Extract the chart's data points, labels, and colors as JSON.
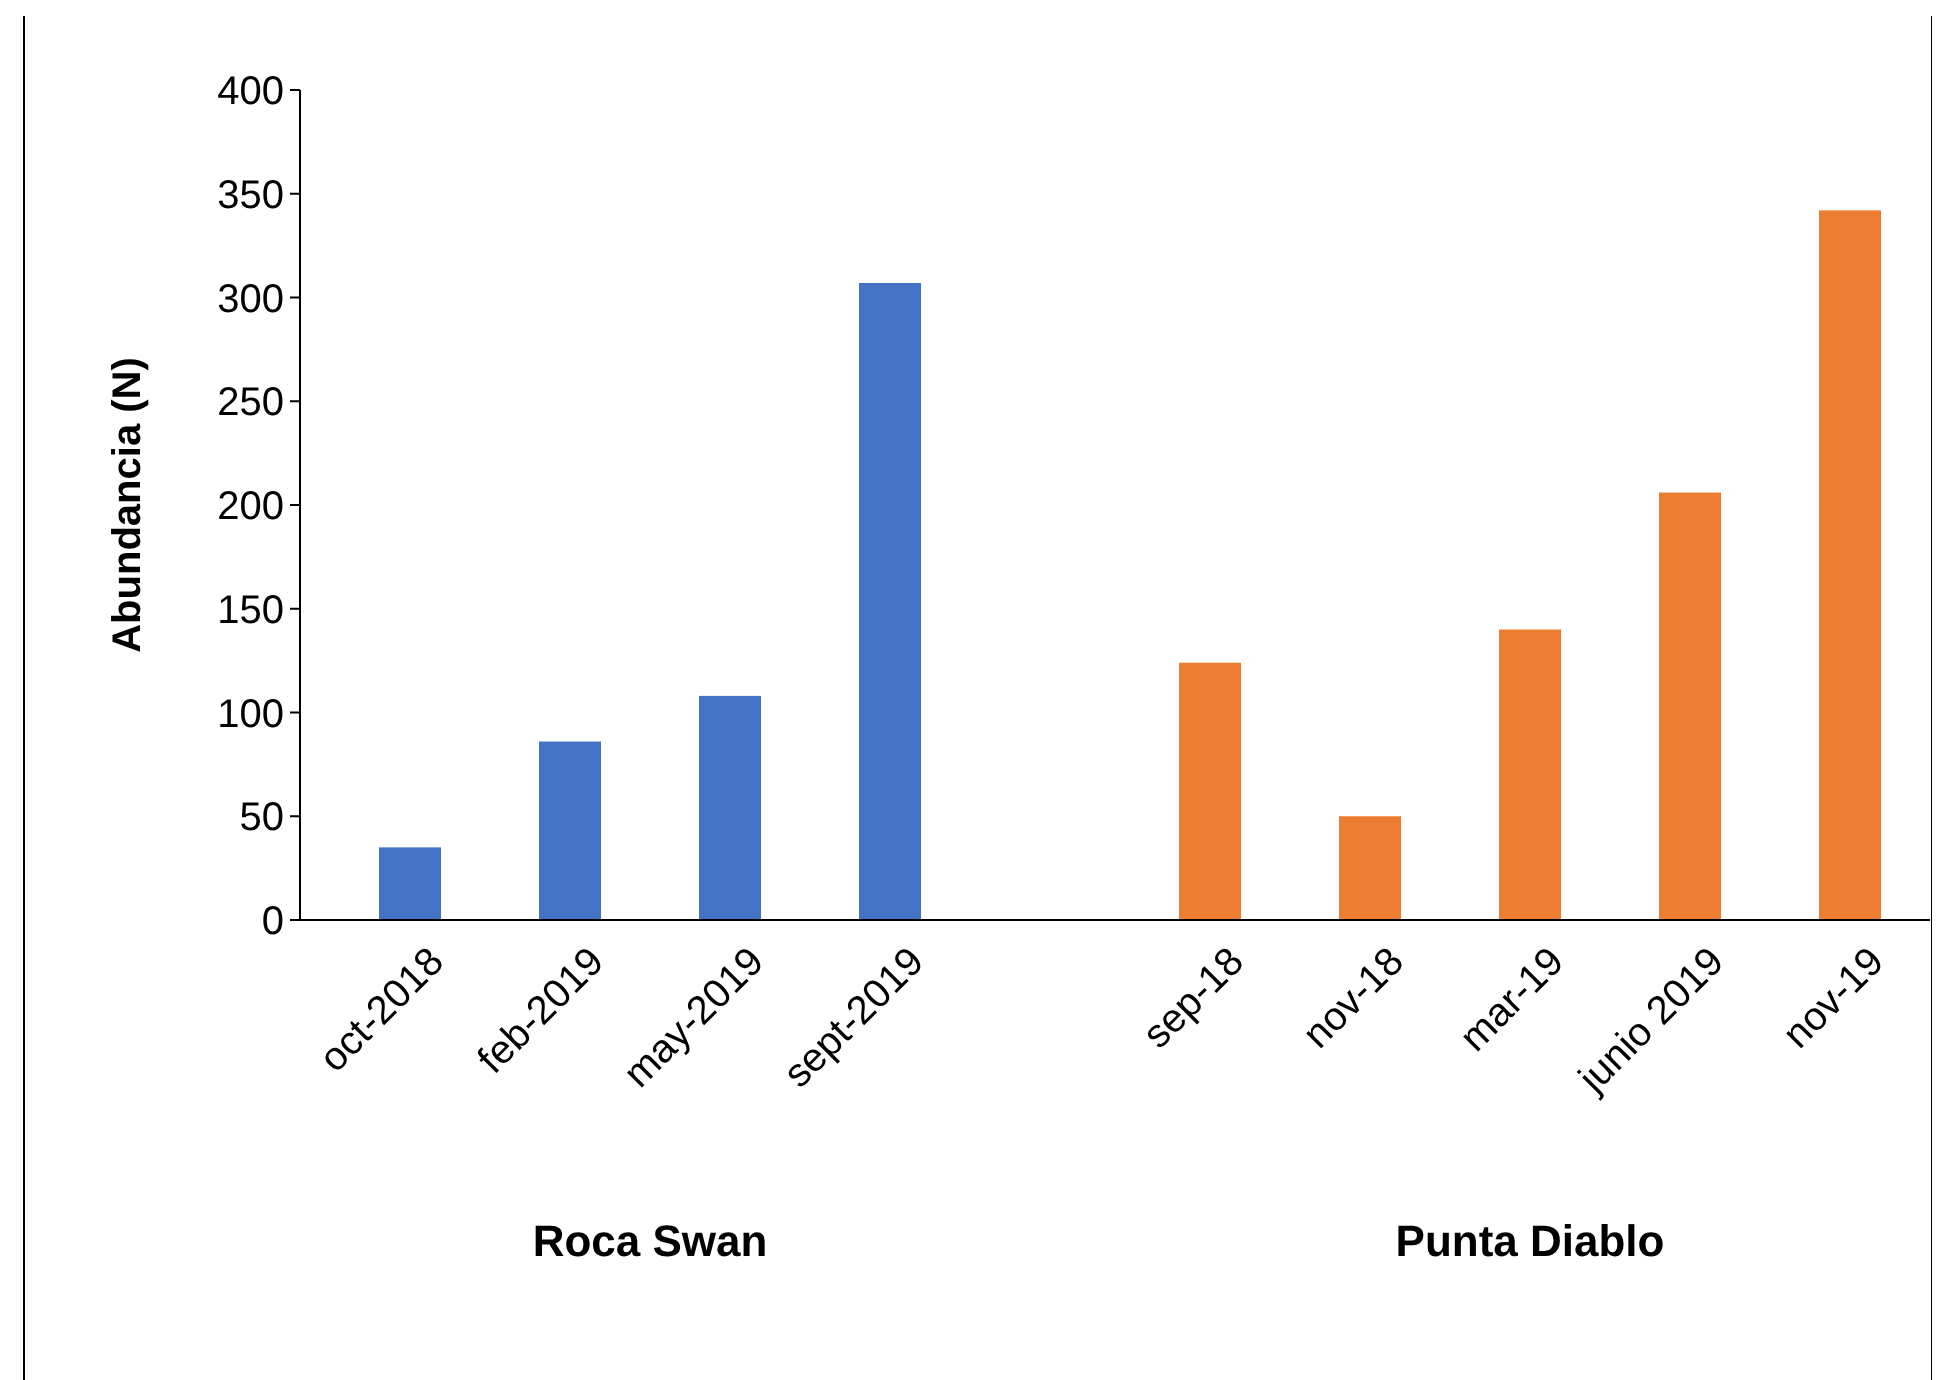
{
  "chart_data": {
    "type": "bar",
    "ylabel": "Abundancia (N)",
    "categories": [
      "oct-2018",
      "feb-2019",
      "may-2019",
      "sept-2019",
      null,
      "sep-18",
      "nov-18",
      "mar-19",
      "junio 2019",
      "nov-19"
    ],
    "values": [
      35,
      86,
      108,
      307,
      null,
      124,
      50,
      140,
      206,
      342
    ],
    "colors": [
      "#4472c4",
      "#4472c4",
      "#4472c4",
      "#4472c4",
      null,
      "#ed7d31",
      "#ed7d31",
      "#ed7d31",
      "#ed7d31",
      "#ed7d31"
    ],
    "ylim": [
      0,
      400
    ],
    "yticks": [
      0,
      50,
      100,
      150,
      200,
      250,
      300,
      350,
      400
    ],
    "grid": false,
    "annotations": [
      "Roca Swan",
      "Punta Diablo"
    ]
  }
}
